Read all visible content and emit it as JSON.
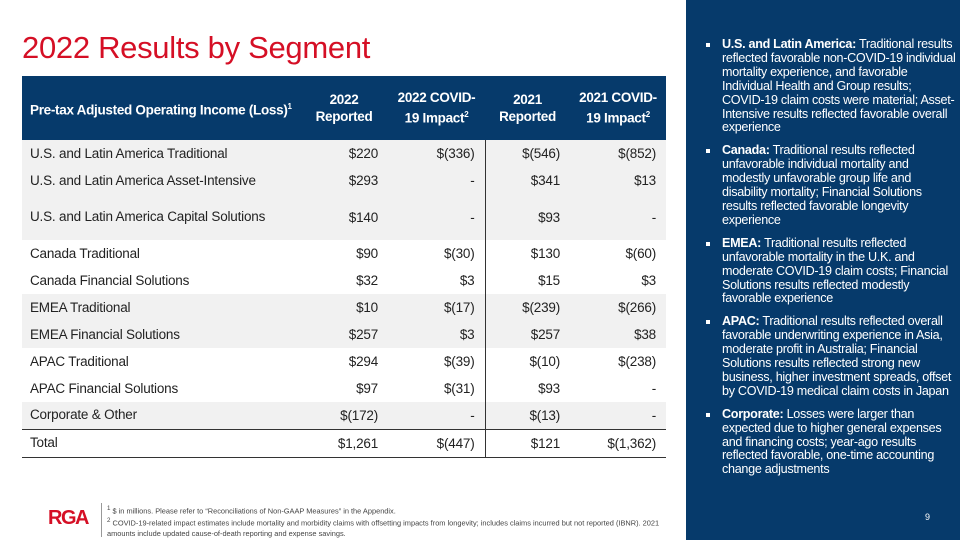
{
  "title": "2022 Results by Segment",
  "table": {
    "headers": [
      {
        "text": "Pre-tax Adjusted Operating Income (Loss)",
        "sup": "1"
      },
      {
        "text": "2022 Reported",
        "sup": ""
      },
      {
        "text": "2022 COVID-19 Impact",
        "sup": "2"
      },
      {
        "text": "2021 Reported",
        "sup": ""
      },
      {
        "text": "2021 COVID-19 Impact",
        "sup": "2"
      }
    ],
    "rows": [
      [
        "U.S. and Latin America Traditional",
        "$220",
        "$(336)",
        "$(546)",
        "$(852)"
      ],
      [
        "U.S. and Latin America Asset-Intensive",
        "$293",
        "-",
        "$341",
        "$13"
      ],
      [
        "U.S. and Latin America Capital Solutions",
        "$140",
        "-",
        "$93",
        "-"
      ],
      [
        "Canada Traditional",
        "$90",
        "$(30)",
        "$130",
        "$(60)"
      ],
      [
        "Canada Financial Solutions",
        "$32",
        "$3",
        "$15",
        "$3"
      ],
      [
        "EMEA Traditional",
        "$10",
        "$(17)",
        "$(239)",
        "$(266)"
      ],
      [
        "EMEA Financial Solutions",
        "$257",
        "$3",
        "$257",
        "$38"
      ],
      [
        "APAC Traditional",
        "$294",
        "$(39)",
        "$(10)",
        "$(238)"
      ],
      [
        "APAC Financial Solutions",
        "$97",
        "$(31)",
        "$93",
        "-"
      ],
      [
        "Corporate & Other",
        "$(172)",
        "-",
        "$(13)",
        "-"
      ],
      [
        "Total",
        "$1,261",
        "$(447)",
        "$121",
        "$(1,362)"
      ]
    ]
  },
  "bullets": [
    {
      "head": "U.S. and Latin America:",
      "body": " Traditional results reflected favorable non-COVID-19 individual mortality experience, and favorable Individual Health and Group results; COVID-19 claim costs were material; Asset-Intensive results reflected favorable overall experience"
    },
    {
      "head": "Canada:",
      "body": " Traditional results reflected unfavorable individual mortality and modestly unfavorable group life and disability mortality; Financial Solutions results reflected favorable longevity experience"
    },
    {
      "head": "EMEA:",
      "body": " Traditional results reflected unfavorable mortality in the U.K. and moderate COVID-19 claim costs; Financial Solutions results reflected modestly favorable experience"
    },
    {
      "head": "APAC:",
      "body": " Traditional results reflected overall favorable underwriting experience in Asia, moderate profit in Australia; Financial Solutions results reflected strong new business, higher investment spreads, offset by COVID-19 medical claim costs in Japan"
    },
    {
      "head": "Corporate:",
      "body": " Losses were larger than expected due to higher general expenses and financing costs; year-ago results reflected favorable, one-time accounting change adjustments"
    }
  ],
  "footnotes": [
    {
      "sup": "1",
      "text": " $ in millions. Please refer to “Reconciliations of Non-GAAP Measures” in the Appendix."
    },
    {
      "sup": "2",
      "text": " COVID-19-related impact estimates include mortality and morbidity claims with offsetting impacts from longevity; includes claims incurred but not reported (IBNR). 2021 amounts include updated cause-of-death reporting and expense savings."
    }
  ],
  "logo": "RGA",
  "page_number": "9",
  "colors": {
    "brand_red": "#d50f25",
    "navy": "#063a6b"
  }
}
